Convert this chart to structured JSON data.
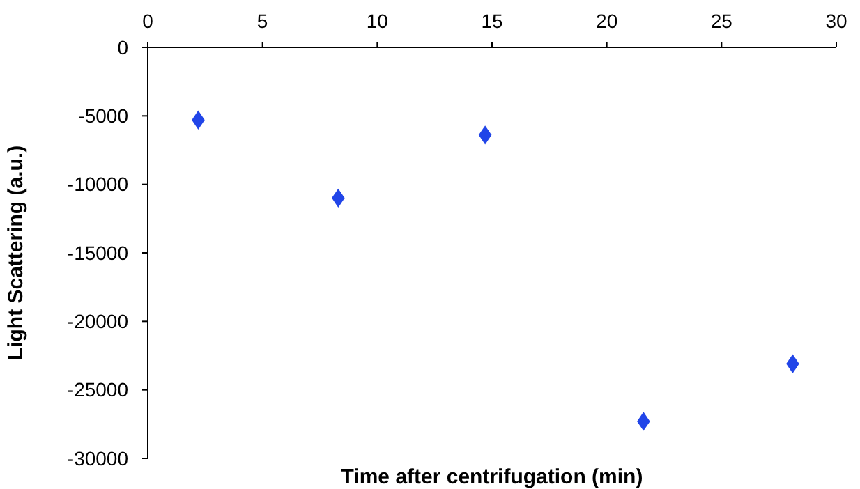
{
  "chart_data": {
    "type": "scatter",
    "xlabel": "Time after centrifugation (min)",
    "ylabel": "Light Scattering (a.u.)",
    "x": [
      2.2,
      8.3,
      14.7,
      21.6,
      28.1
    ],
    "series": [
      {
        "color": "#2145e8",
        "values": [
          -5300,
          -11000,
          -6400,
          -27300,
          -23100
        ]
      }
    ],
    "xlim": [
      0,
      30
    ],
    "xticks": [
      0,
      5,
      10,
      15,
      20,
      25,
      30
    ],
    "ylim": [
      -30000,
      0
    ],
    "yticks": [
      0,
      -5000,
      -10000,
      -15000,
      -20000,
      -25000,
      -30000
    ],
    "marker": "diamond",
    "grid": false
  }
}
